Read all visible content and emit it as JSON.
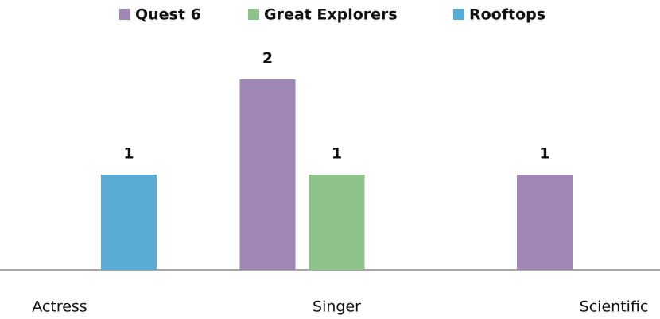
{
  "chart_data": {
    "type": "bar",
    "categories": [
      "Actress",
      "Singer",
      "Scientific"
    ],
    "series": [
      {
        "name": "Quest 6",
        "color": "#9e86b5",
        "values": [
          null,
          2,
          1
        ]
      },
      {
        "name": "Great Explorers",
        "color": "#8dc38a",
        "values": [
          null,
          1,
          null
        ]
      },
      {
        "name": "Rooftops",
        "color": "#5aabd4",
        "values": [
          1,
          null,
          null
        ]
      }
    ],
    "ylim": [
      0,
      2.5
    ],
    "legend": "top"
  }
}
